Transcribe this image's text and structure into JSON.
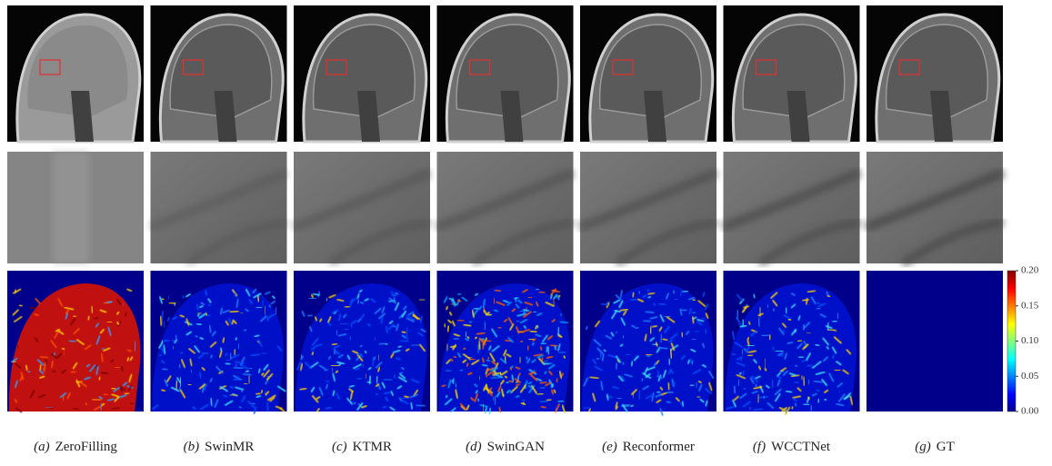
{
  "figure": {
    "panels": [
      {
        "letter": "(a)",
        "name": "ZeroFilling"
      },
      {
        "letter": "(b)",
        "name": "SwinMR"
      },
      {
        "letter": "(c)",
        "name": "KTMR"
      },
      {
        "letter": "(d)",
        "name": "SwinGAN"
      },
      {
        "letter": "(e)",
        "name": "Reconformer"
      },
      {
        "letter": "(f)",
        "name": "WCCTNet"
      },
      {
        "letter": "(g)",
        "name": "GT"
      }
    ],
    "colorbar": {
      "clim": [
        0,
        0.2
      ],
      "ticks": [
        {
          "value": 0,
          "label": "0.00"
        },
        {
          "value": 0.05,
          "label": "0.05"
        },
        {
          "value": 0.1,
          "label": "0.10"
        },
        {
          "value": 0.15,
          "label": "0.15"
        },
        {
          "value": 0.2,
          "label": "0.20"
        }
      ]
    }
  }
}
